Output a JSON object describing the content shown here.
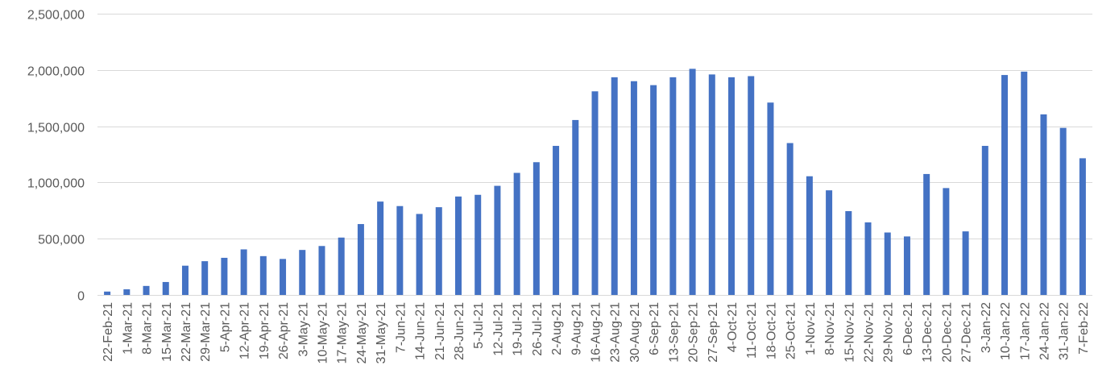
{
  "chart_data": {
    "type": "bar",
    "title": "",
    "xlabel": "",
    "ylabel": "",
    "ylim": [
      0,
      2500000
    ],
    "y_ticks": [
      0,
      500000,
      1000000,
      1500000,
      2000000,
      2500000
    ],
    "y_tick_labels": [
      "0",
      "500,000",
      "1,000,000",
      "1,500,000",
      "2,000,000",
      "2,500,000"
    ],
    "grid": true,
    "legend": "none",
    "bar_color": "#4472C4",
    "categories": [
      "22-Feb-21",
      "1-Mar-21",
      "8-Mar-21",
      "15-Mar-21",
      "22-Mar-21",
      "29-Mar-21",
      "5-Apr-21",
      "12-Apr-21",
      "19-Apr-21",
      "26-Apr-21",
      "3-May-21",
      "10-May-21",
      "17-May-21",
      "24-May-21",
      "31-May-21",
      "7-Jun-21",
      "14-Jun-21",
      "21-Jun-21",
      "28-Jun-21",
      "5-Jul-21",
      "12-Jul-21",
      "19-Jul-21",
      "26-Jul-21",
      "2-Aug-21",
      "9-Aug-21",
      "16-Aug-21",
      "23-Aug-21",
      "30-Aug-21",
      "6-Sep-21",
      "13-Sep-21",
      "20-Sep-21",
      "27-Sep-21",
      "4-Oct-21",
      "11-Oct-21",
      "18-Oct-21",
      "25-Oct-21",
      "1-Nov-21",
      "8-Nov-21",
      "15-Nov-21",
      "22-Nov-21",
      "29-Nov-21",
      "6-Dec-21",
      "13-Dec-21",
      "20-Dec-21",
      "27-Dec-21",
      "3-Jan-22",
      "10-Jan-22",
      "17-Jan-22",
      "24-Jan-22",
      "31-Jan-22",
      "7-Feb-22"
    ],
    "values": [
      30000,
      50000,
      80000,
      115000,
      260000,
      300000,
      330000,
      405000,
      345000,
      320000,
      400000,
      435000,
      510000,
      630000,
      830000,
      790000,
      720000,
      780000,
      875000,
      890000,
      970000,
      1085000,
      1180000,
      1325000,
      1555000,
      1810000,
      1935000,
      1900000,
      1865000,
      1935000,
      2010000,
      1960000,
      1935000,
      1945000,
      1710000,
      1350000,
      1055000,
      930000,
      745000,
      645000,
      555000,
      520000,
      1075000,
      950000,
      565000,
      1325000,
      1955000,
      1985000,
      1605000,
      1485000,
      1215000
    ]
  }
}
